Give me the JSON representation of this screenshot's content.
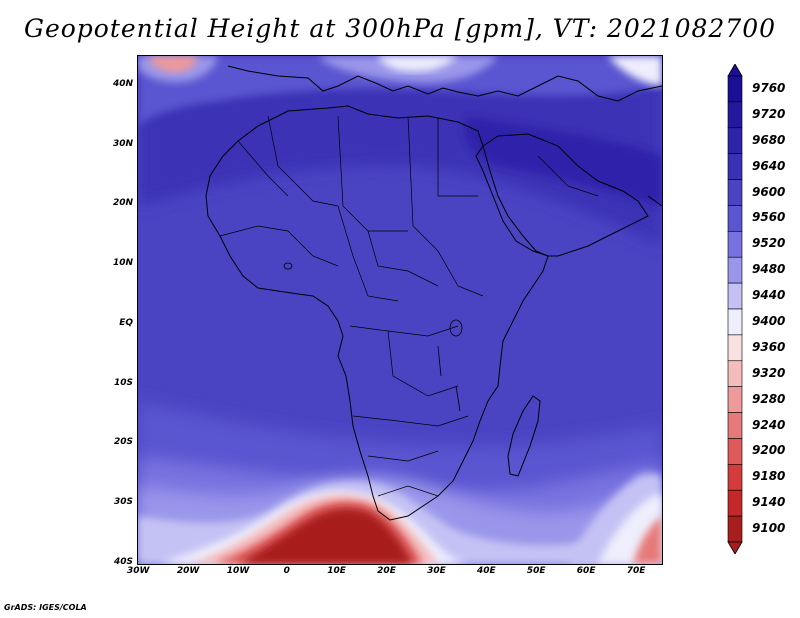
{
  "title": "Geopotential Height at 300hPa [gpm], VT: 2021082700",
  "footer": "GrADS: IGES/COLA",
  "map": {
    "lon_range": [
      -30,
      75
    ],
    "lat_range": [
      -40,
      45
    ],
    "lon_ticks": [
      {
        "value": -30,
        "label": "30W"
      },
      {
        "value": -20,
        "label": "20W"
      },
      {
        "value": -10,
        "label": "10W"
      },
      {
        "value": 0,
        "label": "0"
      },
      {
        "value": 10,
        "label": "10E"
      },
      {
        "value": 20,
        "label": "20E"
      },
      {
        "value": 30,
        "label": "30E"
      },
      {
        "value": 40,
        "label": "40E"
      },
      {
        "value": 50,
        "label": "50E"
      },
      {
        "value": 60,
        "label": "60E"
      },
      {
        "value": 70,
        "label": "70E"
      }
    ],
    "lat_ticks": [
      {
        "value": 40,
        "label": "40N"
      },
      {
        "value": 30,
        "label": "30N"
      },
      {
        "value": 20,
        "label": "20N"
      },
      {
        "value": 10,
        "label": "10N"
      },
      {
        "value": 0,
        "label": "EQ"
      },
      {
        "value": -10,
        "label": "10S"
      },
      {
        "value": -20,
        "label": "20S"
      },
      {
        "value": -30,
        "label": "30S"
      },
      {
        "value": -40,
        "label": "40S"
      }
    ]
  },
  "colorbar": {
    "levels": [
      {
        "value": "9760",
        "color": "#1a0f96"
      },
      {
        "value": "9720",
        "color": "#24189f"
      },
      {
        "value": "9680",
        "color": "#2e24aa"
      },
      {
        "value": "9640",
        "color": "#3a32b5"
      },
      {
        "value": "9600",
        "color": "#4a44c3"
      },
      {
        "value": "9560",
        "color": "#5a55d0"
      },
      {
        "value": "9520",
        "color": "#7872e0"
      },
      {
        "value": "9480",
        "color": "#9a96ea"
      },
      {
        "value": "9440",
        "color": "#c4c2f4"
      },
      {
        "value": "9400",
        "color": "#eeeefc"
      },
      {
        "value": "9360",
        "color": "#fbe2e2"
      },
      {
        "value": "9320",
        "color": "#f5bcbc"
      },
      {
        "value": "9280",
        "color": "#ee9a9a"
      },
      {
        "value": "9240",
        "color": "#e67a7a"
      },
      {
        "value": "9200",
        "color": "#de5a5a"
      },
      {
        "value": "9180",
        "color": "#d43c3c"
      },
      {
        "value": "9140",
        "color": "#c42828"
      },
      {
        "value": "9100",
        "color": "#a81e1e"
      }
    ]
  }
}
